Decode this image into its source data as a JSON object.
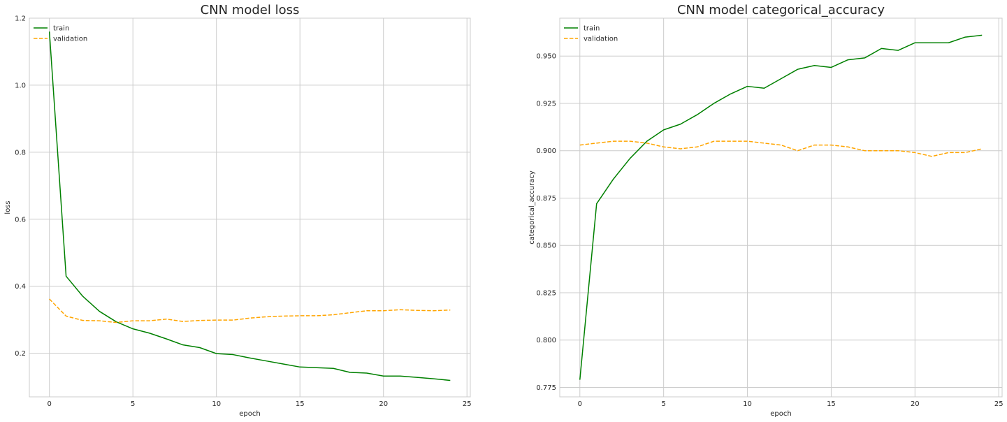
{
  "chart_data": [
    {
      "type": "line",
      "title": "CNN model loss",
      "xlabel": "epoch",
      "ylabel": "loss",
      "xlim": [
        -1.2,
        25.2
      ],
      "ylim": [
        0.07,
        1.2
      ],
      "xticks": [
        0,
        5,
        10,
        15,
        20,
        25
      ],
      "yticks": [
        0.2,
        0.4,
        0.6,
        0.8,
        1.0,
        1.2
      ],
      "ytick_labels": [
        "0.2",
        "0.4",
        "0.6",
        "0.8",
        "1.0",
        "1.2"
      ],
      "grid": true,
      "legend": "upper left",
      "x": [
        0,
        1,
        2,
        3,
        4,
        5,
        6,
        7,
        8,
        9,
        10,
        11,
        12,
        13,
        14,
        15,
        16,
        17,
        18,
        19,
        20,
        21,
        22,
        23,
        24
      ],
      "series": [
        {
          "name": "train",
          "color": "#008000",
          "dash": "solid",
          "values": [
            1.16,
            0.43,
            0.37,
            0.325,
            0.294,
            0.273,
            0.26,
            0.243,
            0.225,
            0.217,
            0.199,
            0.196,
            0.186,
            0.177,
            0.168,
            0.159,
            0.157,
            0.155,
            0.143,
            0.141,
            0.132,
            0.132,
            0.128,
            0.124,
            0.119
          ]
        },
        {
          "name": "validation",
          "color": "#ffa500",
          "dash": "dashed",
          "values": [
            0.362,
            0.311,
            0.298,
            0.297,
            0.292,
            0.297,
            0.297,
            0.302,
            0.295,
            0.298,
            0.299,
            0.299,
            0.305,
            0.309,
            0.311,
            0.312,
            0.312,
            0.315,
            0.321,
            0.327,
            0.327,
            0.33,
            0.328,
            0.327,
            0.329
          ]
        }
      ]
    },
    {
      "type": "line",
      "title": "CNN model categorical_accuracy",
      "xlabel": "epoch",
      "ylabel": "categorical_accuracy",
      "xlim": [
        -1.2,
        25.2
      ],
      "ylim": [
        0.77,
        0.97
      ],
      "xticks": [
        0,
        5,
        10,
        15,
        20,
        25
      ],
      "yticks": [
        0.775,
        0.8,
        0.825,
        0.85,
        0.875,
        0.9,
        0.925,
        0.95
      ],
      "ytick_labels": [
        "0.775",
        "0.800",
        "0.825",
        "0.850",
        "0.875",
        "0.900",
        "0.925",
        "0.950"
      ],
      "grid": true,
      "legend": "upper left",
      "x": [
        0,
        1,
        2,
        3,
        4,
        5,
        6,
        7,
        8,
        9,
        10,
        11,
        12,
        13,
        14,
        15,
        16,
        17,
        18,
        19,
        20,
        21,
        22,
        23,
        24
      ],
      "series": [
        {
          "name": "train",
          "color": "#008000",
          "dash": "solid",
          "values": [
            0.779,
            0.872,
            0.885,
            0.896,
            0.905,
            0.911,
            0.914,
            0.919,
            0.925,
            0.93,
            0.934,
            0.933,
            0.938,
            0.943,
            0.945,
            0.944,
            0.948,
            0.949,
            0.954,
            0.953,
            0.957,
            0.957,
            0.957,
            0.96,
            0.961
          ]
        },
        {
          "name": "validation",
          "color": "#ffa500",
          "dash": "dashed",
          "values": [
            0.903,
            0.904,
            0.905,
            0.905,
            0.904,
            0.902,
            0.901,
            0.902,
            0.905,
            0.905,
            0.905,
            0.904,
            0.903,
            0.9,
            0.903,
            0.903,
            0.902,
            0.9,
            0.9,
            0.9,
            0.899,
            0.897,
            0.899,
            0.899,
            0.901
          ]
        }
      ]
    }
  ]
}
